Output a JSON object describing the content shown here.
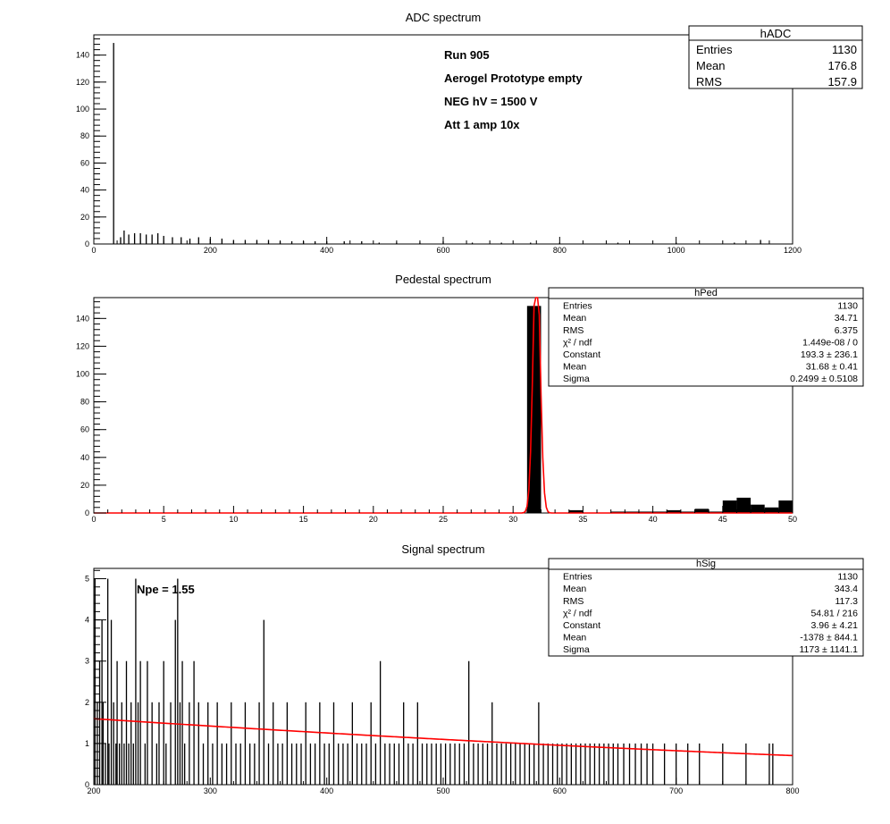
{
  "chart_data": [
    {
      "type": "bar",
      "title": "ADC spectrum",
      "xlim": [
        0,
        1200
      ],
      "ylim": [
        0,
        155
      ],
      "xticks": [
        0,
        200,
        400,
        600,
        800,
        1000,
        1200
      ],
      "yticks": [
        0,
        20,
        40,
        60,
        80,
        100,
        120,
        140
      ],
      "x": [
        34,
        46,
        52,
        60,
        70,
        80,
        90,
        100,
        110,
        120,
        135,
        150,
        165,
        180,
        200,
        220,
        240,
        260,
        280,
        300,
        320,
        340,
        360,
        380,
        400,
        430,
        460,
        490,
        520,
        560,
        600,
        650,
        700,
        750,
        800,
        900,
        1000,
        1100,
        1145
      ],
      "y": [
        149,
        5,
        10,
        7,
        8,
        8,
        7,
        7,
        8,
        6,
        5,
        5,
        4,
        5,
        4,
        4,
        3,
        3,
        3,
        3,
        2,
        2,
        2,
        2,
        2,
        2,
        2,
        1,
        1,
        1,
        2,
        1,
        1,
        1,
        1,
        1,
        1,
        1,
        3
      ],
      "stats": {
        "name": "hADC",
        "rows": [
          {
            "label": "Entries",
            "value": "1130"
          },
          {
            "label": "Mean",
            "value": "176.8"
          },
          {
            "label": "RMS",
            "value": "157.9"
          }
        ]
      },
      "annotations": [
        "Run  905",
        "Aerogel Prototype empty",
        "NEG hV = 1500 V",
        "Att 1 amp 10x"
      ]
    },
    {
      "type": "bar",
      "title": "Pedestal spectrum",
      "xlim": [
        0,
        50
      ],
      "ylim": [
        0,
        155
      ],
      "xticks": [
        0,
        5,
        10,
        15,
        20,
        25,
        30,
        35,
        40,
        45,
        50
      ],
      "yticks": [
        0,
        20,
        40,
        60,
        80,
        100,
        120,
        140
      ],
      "bins": [
        {
          "x0": 31,
          "x1": 32,
          "y": 149
        },
        {
          "x0": 34,
          "x1": 35,
          "y": 2
        },
        {
          "x0": 37,
          "x1": 38,
          "y": 1
        },
        {
          "x0": 38,
          "x1": 39,
          "y": 1
        },
        {
          "x0": 39,
          "x1": 40,
          "y": 1
        },
        {
          "x0": 40,
          "x1": 41,
          "y": 1
        },
        {
          "x0": 41,
          "x1": 42,
          "y": 2
        },
        {
          "x0": 42,
          "x1": 43,
          "y": 1
        },
        {
          "x0": 43,
          "x1": 44,
          "y": 3
        },
        {
          "x0": 44,
          "x1": 45,
          "y": 1
        },
        {
          "x0": 45,
          "x1": 46,
          "y": 9
        },
        {
          "x0": 46,
          "x1": 47,
          "y": 11
        },
        {
          "x0": 47,
          "x1": 48,
          "y": 6
        },
        {
          "x0": 48,
          "x1": 49,
          "y": 4
        },
        {
          "x0": 49,
          "x1": 50,
          "y": 9
        }
      ],
      "fit": {
        "type": "gaus",
        "constant": 193.3,
        "mean": 31.68,
        "sigma": 0.2499,
        "color": "#ff0000"
      },
      "stats": {
        "name": "hPed",
        "rows": [
          {
            "label": "Entries",
            "value": "1130"
          },
          {
            "label": "Mean",
            "value": "34.71"
          },
          {
            "label": "RMS",
            "value": "6.375"
          },
          {
            "label": "χ² / ndf",
            "value": "1.449e-08 / 0"
          },
          {
            "label": "Constant",
            "value": "193.3 ± 236.1"
          },
          {
            "label": "Mean",
            "value": "31.68 ± 0.41"
          },
          {
            "label": "Sigma",
            "value": "0.2499 ± 0.5108"
          }
        ]
      }
    },
    {
      "type": "bar",
      "title": "Signal spectrum",
      "xlim": [
        200,
        800
      ],
      "ylim": [
        0,
        5.25
      ],
      "xticks": [
        200,
        300,
        400,
        500,
        600,
        700,
        800
      ],
      "yticks": [
        0,
        1,
        2,
        3,
        4,
        5
      ],
      "x": [
        201,
        203,
        205,
        207,
        208,
        210,
        212,
        213,
        215,
        217,
        219,
        220,
        222,
        224,
        226,
        228,
        230,
        232,
        234,
        236,
        238,
        240,
        244,
        246,
        250,
        254,
        256,
        260,
        262,
        266,
        270,
        272,
        274,
        276,
        278,
        282,
        286,
        290,
        294,
        298,
        302,
        306,
        310,
        314,
        318,
        322,
        326,
        330,
        334,
        338,
        342,
        346,
        350,
        354,
        358,
        362,
        366,
        370,
        374,
        378,
        382,
        386,
        390,
        394,
        398,
        402,
        406,
        410,
        414,
        418,
        422,
        426,
        430,
        434,
        438,
        442,
        446,
        450,
        454,
        458,
        462,
        466,
        470,
        474,
        478,
        482,
        486,
        490,
        494,
        498,
        502,
        506,
        510,
        514,
        518,
        522,
        526,
        530,
        534,
        538,
        542,
        546,
        550,
        554,
        558,
        562,
        566,
        570,
        574,
        578,
        582,
        586,
        590,
        594,
        598,
        602,
        606,
        610,
        614,
        618,
        622,
        626,
        630,
        634,
        638,
        642,
        646,
        650,
        655,
        660,
        665,
        670,
        675,
        680,
        690,
        700,
        710,
        720,
        740,
        760,
        780,
        783
      ],
      "y": [
        5,
        2,
        3,
        4,
        2,
        1,
        5,
        1,
        4,
        2,
        1,
        3,
        1,
        2,
        1,
        3,
        1,
        2,
        1,
        5,
        2,
        3,
        1,
        3,
        2,
        1,
        2,
        3,
        1,
        2,
        4,
        5,
        2,
        3,
        1,
        2,
        3,
        2,
        1,
        2,
        1,
        2,
        1,
        1,
        2,
        1,
        1,
        2,
        1,
        1,
        2,
        4,
        1,
        2,
        1,
        1,
        2,
        1,
        1,
        1,
        2,
        1,
        1,
        2,
        1,
        1,
        2,
        1,
        1,
        1,
        2,
        1,
        1,
        1,
        2,
        1,
        3,
        1,
        1,
        1,
        1,
        2,
        1,
        1,
        2,
        1,
        1,
        1,
        1,
        1,
        1,
        1,
        1,
        1,
        1,
        3,
        1,
        1,
        1,
        1,
        2,
        1,
        1,
        1,
        1,
        1,
        1,
        1,
        1,
        1,
        2,
        1,
        1,
        1,
        1,
        1,
        1,
        1,
        1,
        1,
        1,
        1,
        1,
        1,
        1,
        1,
        1,
        1,
        1,
        1,
        1,
        1,
        1,
        1,
        1,
        1,
        1,
        1,
        1,
        1,
        1,
        1
      ],
      "fit": {
        "type": "gaus",
        "constant": 3.96,
        "mean": -1378,
        "sigma": 1173,
        "color": "#ff0000"
      },
      "stats": {
        "name": "hSig",
        "rows": [
          {
            "label": "Entries",
            "value": "1130"
          },
          {
            "label": "Mean",
            "value": "343.4"
          },
          {
            "label": "RMS",
            "value": "117.3"
          },
          {
            "label": "χ² / ndf",
            "value": "54.81 / 216"
          },
          {
            "label": "Constant",
            "value": "3.96 ± 4.21"
          },
          {
            "label": "Mean",
            "value": "-1378 ± 844.1"
          },
          {
            "label": "Sigma",
            "value": "1173 ± 1141.1"
          }
        ]
      },
      "annotations": [
        "Npe = 1.55"
      ]
    }
  ]
}
